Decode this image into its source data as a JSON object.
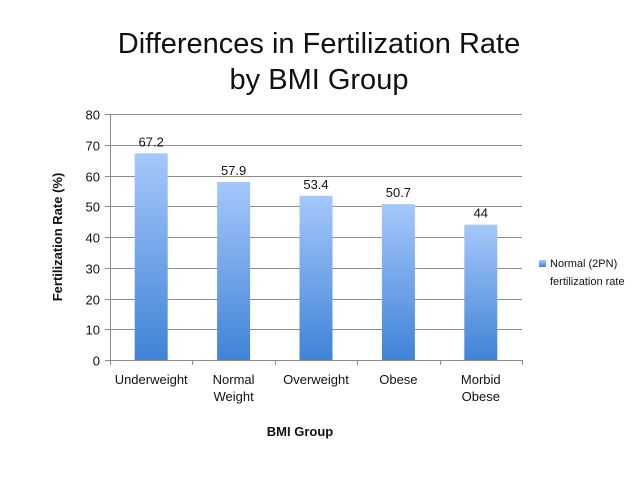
{
  "chart_data": {
    "type": "bar",
    "title_lines": [
      "Differences in Fertilization Rate",
      "by BMI Group"
    ],
    "categories": [
      [
        "Underweight"
      ],
      [
        "Normal",
        "Weight"
      ],
      [
        "Overweight"
      ],
      [
        "Obese"
      ],
      [
        "Morbid",
        "Obese"
      ]
    ],
    "series": [
      {
        "name": "Normal (2PN) fertilization rate",
        "name_lines": [
          "Normal (2PN)",
          "fertilization rate"
        ],
        "values": [
          67.2,
          57.9,
          53.4,
          50.7,
          44
        ],
        "labels": [
          "67.2",
          "57.9",
          "53.4",
          "50.7",
          "44"
        ],
        "color_top": "#a6c8fb",
        "color_bottom": "#3f83d6"
      }
    ],
    "xlabel": "BMI Group",
    "ylabel": "Fertilization Rate (%)",
    "ylim": [
      0,
      80
    ],
    "yticks": [
      0,
      10,
      20,
      30,
      40,
      50,
      60,
      70,
      80
    ],
    "grid": true,
    "legend_position": "right"
  }
}
